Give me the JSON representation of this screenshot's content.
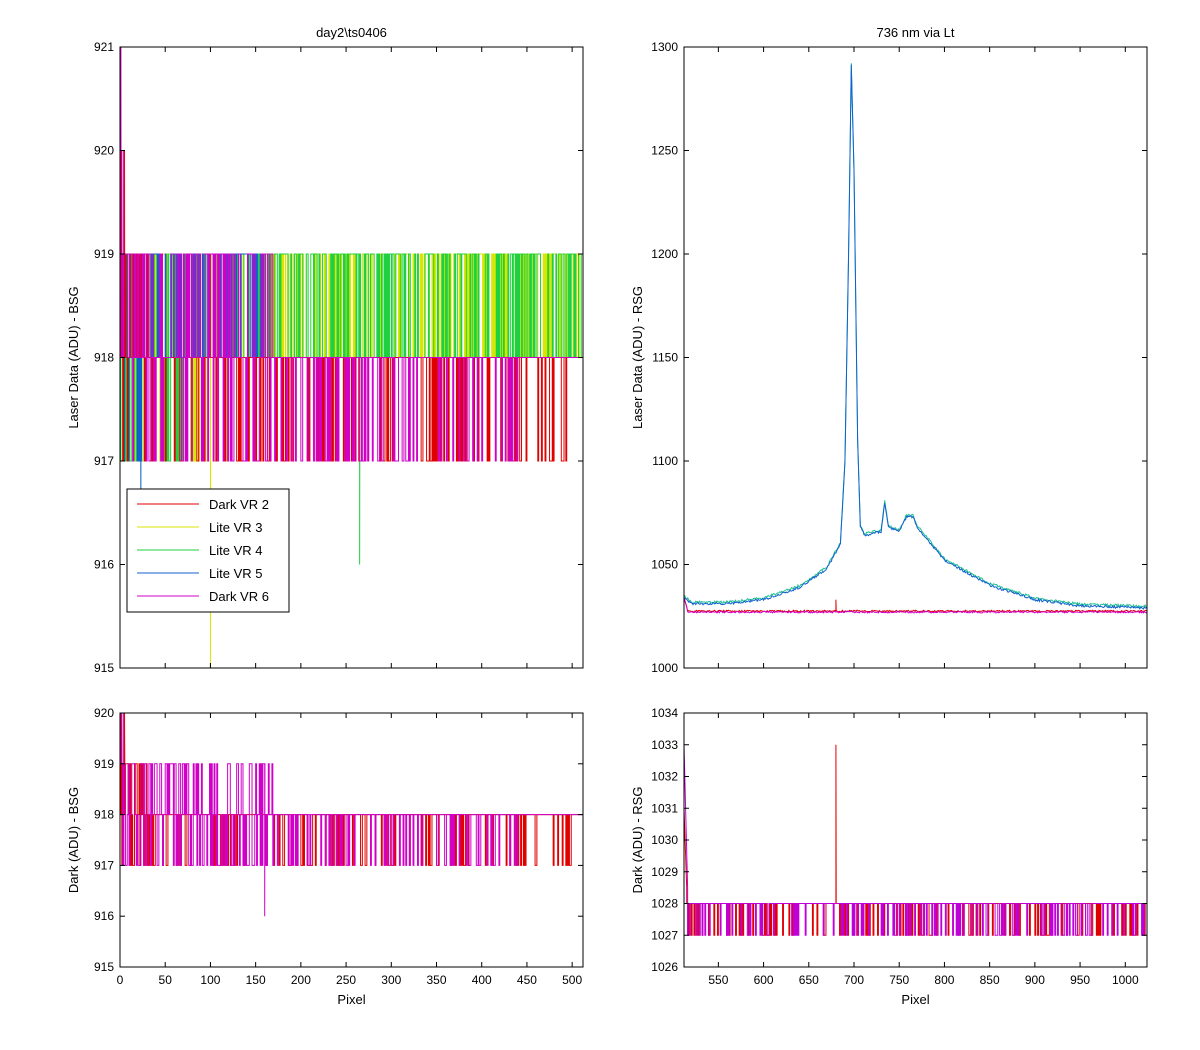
{
  "chart_data": [
    {
      "id": "top-left",
      "type": "line",
      "title": "day2\\ts0406",
      "xlabel": "",
      "ylabel": "Laser Data (ADU) - BSG",
      "xlim": [
        0,
        512
      ],
      "ylim": [
        915,
        921
      ],
      "xticks": [],
      "yticks": [
        915,
        916,
        917,
        918,
        919,
        920,
        921
      ],
      "legend": {
        "position": "lower-left",
        "entries": [
          {
            "label": "Dark VR 2",
            "color": "#e00000"
          },
          {
            "label": "Lite VR 3",
            "color": "#d8e600"
          },
          {
            "label": "Lite VR 4",
            "color": "#20d040"
          },
          {
            "label": "Lite VR 5",
            "color": "#1060d0"
          },
          {
            "label": "Dark VR 6",
            "color": "#d000c8"
          }
        ]
      },
      "series": [
        {
          "label": "Lite VR 3",
          "color": "#d8e600",
          "base": 918,
          "alt": 919,
          "dip": 917,
          "dipEnd": 120,
          "altEnd": 512,
          "spikes": [
            [
              100,
              915
            ]
          ]
        },
        {
          "label": "Lite VR 4",
          "color": "#20d040",
          "base": 918,
          "alt": 919,
          "dip": 917,
          "dipEnd": 80,
          "altEnd": 512,
          "spikes": [
            [
              265,
              916
            ]
          ]
        },
        {
          "label": "Lite VR 5",
          "color": "#1060d0",
          "base": 918,
          "alt": 919,
          "dip": 917,
          "dipEnd": 40,
          "altEnd": 160,
          "spikes": [
            [
              23,
              916
            ]
          ]
        },
        {
          "label": "Dark VR 2",
          "color": "#e00000",
          "base": 918,
          "alt": 919,
          "dip": 917,
          "dipEnd": 500,
          "altEnd": 30,
          "spikes": [
            [
              2,
              920
            ],
            [
              5,
              920
            ]
          ]
        },
        {
          "label": "Dark VR 6",
          "color": "#d000c8",
          "base": 918,
          "alt": 919,
          "dip": 917,
          "dipEnd": 440,
          "altEnd": 170,
          "spikes": [
            [
              1,
              921
            ],
            [
              4,
              920
            ]
          ]
        }
      ]
    },
    {
      "id": "top-right",
      "type": "line",
      "title": "736 nm via Lt",
      "xlabel": "",
      "ylabel": "Laser Data (ADU) - RSG",
      "xlim": [
        512,
        1024
      ],
      "ylim": [
        1000,
        1300
      ],
      "xticks": [],
      "yticks": [
        1000,
        1050,
        1100,
        1150,
        1200,
        1250,
        1300
      ],
      "series": [
        {
          "label": "Lite VR 4",
          "color": "#20c090",
          "profile": "laser",
          "offset": 0.8
        },
        {
          "label": "Lite VR 5",
          "color": "#1060d0",
          "profile": "laser",
          "offset": 0
        },
        {
          "label": "Dark VR 2",
          "color": "#e00000",
          "profile": "dark",
          "offset": 0,
          "spikes": [
            [
              680,
              1033
            ]
          ]
        },
        {
          "label": "Dark VR 6",
          "color": "#d000c8",
          "profile": "dark",
          "offset": -0.5
        }
      ],
      "laser_profile": [
        [
          512,
          1034
        ],
        [
          520,
          1031
        ],
        [
          560,
          1031
        ],
        [
          600,
          1033
        ],
        [
          640,
          1039
        ],
        [
          670,
          1048
        ],
        [
          685,
          1060
        ],
        [
          690,
          1100
        ],
        [
          694,
          1200
        ],
        [
          697,
          1291
        ],
        [
          700,
          1240
        ],
        [
          704,
          1110
        ],
        [
          707,
          1068
        ],
        [
          712,
          1064
        ],
        [
          730,
          1066
        ],
        [
          734,
          1080
        ],
        [
          738,
          1068
        ],
        [
          750,
          1066
        ],
        [
          758,
          1073
        ],
        [
          765,
          1073
        ],
        [
          770,
          1068
        ],
        [
          800,
          1052
        ],
        [
          850,
          1040
        ],
        [
          900,
          1033
        ],
        [
          950,
          1030
        ],
        [
          1024,
          1029
        ]
      ]
    },
    {
      "id": "bottom-left",
      "type": "line",
      "title": "",
      "xlabel": "Pixel",
      "ylabel": "Dark (ADU) - BSG",
      "xlim": [
        0,
        512
      ],
      "ylim": [
        915,
        920
      ],
      "xticks": [
        0,
        50,
        100,
        150,
        200,
        250,
        300,
        350,
        400,
        450,
        500
      ],
      "yticks": [
        915,
        916,
        917,
        918,
        919,
        920
      ],
      "series": [
        {
          "label": "Dark VR 2",
          "color": "#e00000",
          "base": 918,
          "alt": 919,
          "dip": 917,
          "dipEnd": 500,
          "altEnd": 30,
          "spikes": [
            [
              2,
              920
            ],
            [
              5,
              920
            ]
          ]
        },
        {
          "label": "Dark VR 6",
          "color": "#d000c8",
          "base": 918,
          "alt": 919,
          "dip": 917,
          "dipEnd": 440,
          "altEnd": 170,
          "spikes": [
            [
              1,
              920
            ],
            [
              4,
              920
            ],
            [
              160,
              916
            ]
          ]
        }
      ]
    },
    {
      "id": "bottom-right",
      "type": "line",
      "title": "",
      "xlabel": "Pixel",
      "ylabel": "Dark (ADU) - RSG",
      "xlim": [
        512,
        1024
      ],
      "ylim": [
        1026,
        1034
      ],
      "xticks": [
        550,
        600,
        650,
        700,
        750,
        800,
        850,
        900,
        950,
        1000
      ],
      "yticks": [
        1026,
        1027,
        1028,
        1029,
        1030,
        1031,
        1032,
        1033,
        1034
      ],
      "series": [
        {
          "label": "Dark VR 2",
          "color": "#e00000",
          "base": 1028,
          "alt": 1028,
          "dip": 1027,
          "dipEnd": 1024,
          "altEnd": 512,
          "startDecay": [
            [
              512,
              1031
            ],
            [
              515,
              1028.5
            ]
          ],
          "spikes": [
            [
              680,
              1033
            ]
          ]
        },
        {
          "label": "Dark VR 6",
          "color": "#c000d8",
          "base": 1028,
          "alt": 1028,
          "dip": 1027,
          "dipEnd": 1024,
          "altEnd": 512,
          "startDecay": [
            [
              512,
              1033
            ],
            [
              516,
              1028.5
            ]
          ]
        }
      ]
    }
  ]
}
